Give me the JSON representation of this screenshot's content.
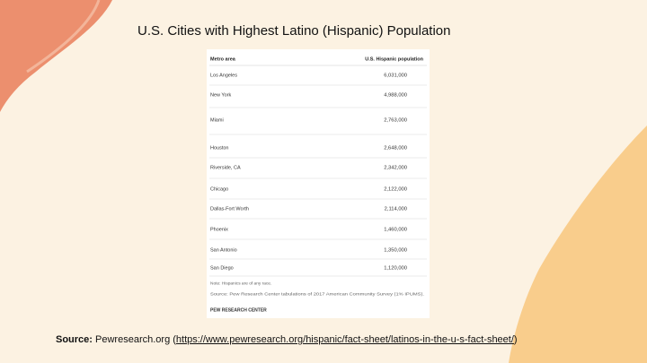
{
  "title": "U.S. Cities with Highest Latino (Hispanic) Population",
  "table": {
    "header": [
      "Metro area",
      "U.S. Hispanic population"
    ],
    "rows": [
      [
        "Los Angeles",
        "6,031,000"
      ],
      [
        "New York",
        "4,988,000"
      ],
      [
        "Miami",
        "2,763,000"
      ],
      [
        "Houston",
        "2,648,000"
      ],
      [
        "Riverside, CA",
        "2,342,000"
      ],
      [
        "Chicago",
        "2,122,000"
      ],
      [
        "Dallas-Fort Worth",
        "2,114,000"
      ],
      [
        "Phoenix",
        "1,460,000"
      ],
      [
        "San Antonio",
        "1,350,000"
      ],
      [
        "San Diego",
        "1,120,000"
      ]
    ],
    "notes": [
      "Note: Hispanics are of any race.",
      "Source: Pew Research Center tabulations of 2017 American Community Survey (1% IPUMS)."
    ],
    "credit": "PEW RESEARCH CENTER"
  },
  "source": {
    "label": "Source:",
    "text": "Pewresearch.org (",
    "link": "https://www.pewresearch.org/hispanic/fact-sheet/latinos-in-the-u-s-fact-sheet/",
    "end": ")"
  }
}
